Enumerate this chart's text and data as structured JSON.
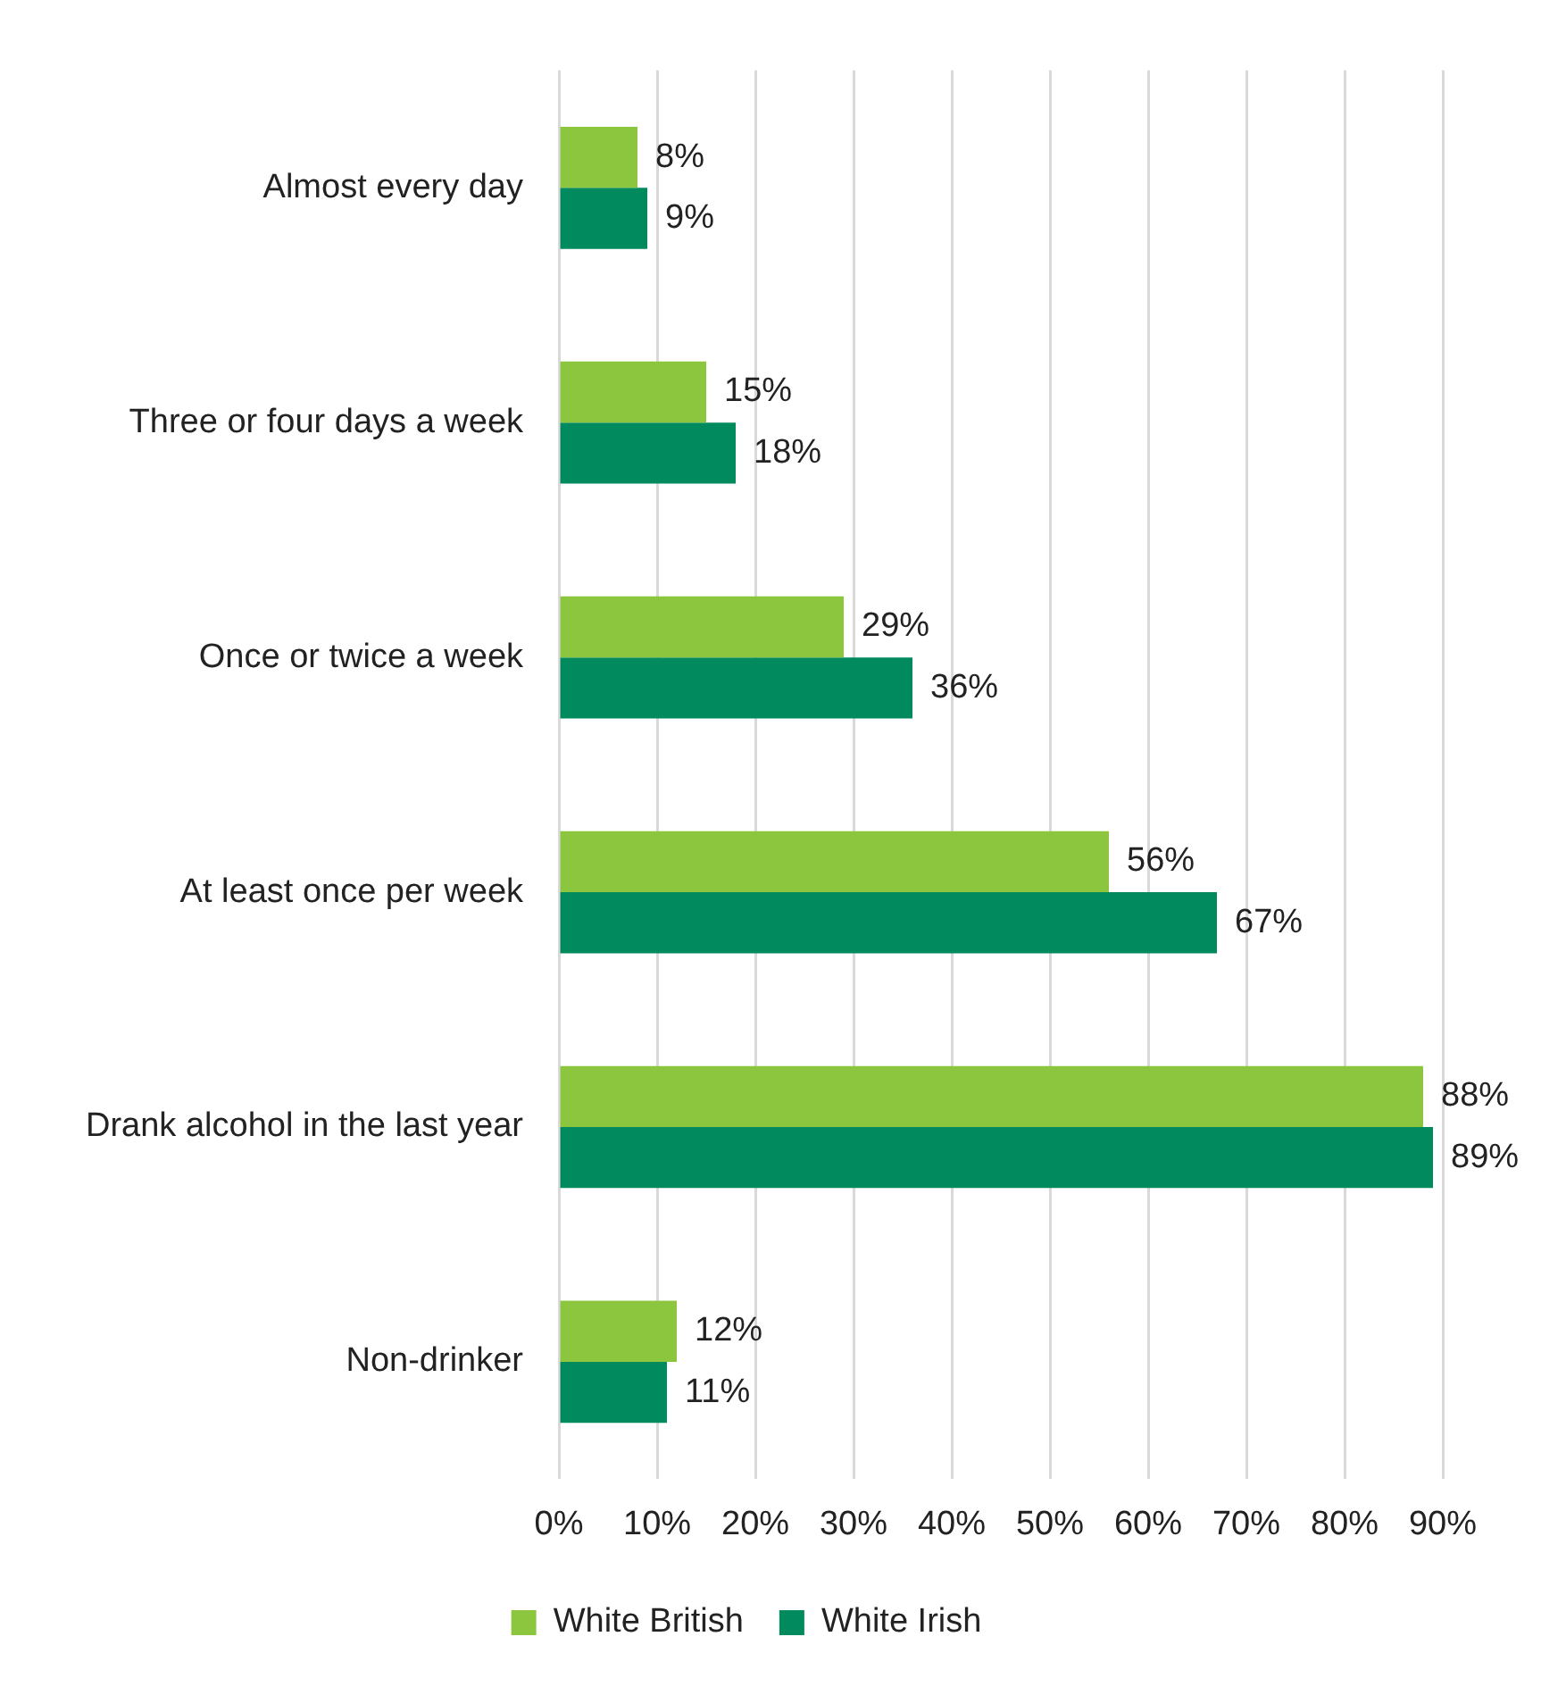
{
  "chart_data": {
    "type": "bar",
    "orientation": "horizontal",
    "categories": [
      "Almost every day",
      "Three or four days a week",
      "Once or twice a week",
      "At least once per week",
      "Drank alcohol in the last year",
      "Non-drinker"
    ],
    "series": [
      {
        "name": "White British",
        "color": "#8cc63f",
        "values": [
          8,
          15,
          29,
          56,
          88,
          12
        ],
        "value_labels": [
          "8%",
          "15%",
          "29%",
          "56%",
          "88%",
          "12%"
        ]
      },
      {
        "name": "White Irish",
        "color": "#008a5e",
        "values": [
          9,
          18,
          36,
          67,
          89,
          11
        ],
        "value_labels": [
          "9%",
          "18%",
          "36%",
          "67%",
          "89%",
          "11%"
        ]
      }
    ],
    "xlim": [
      0,
      90
    ],
    "xticks": [
      {
        "value": 0,
        "label": "0%"
      },
      {
        "value": 10,
        "label": "10%"
      },
      {
        "value": 20,
        "label": "20%"
      },
      {
        "value": 30,
        "label": "30%"
      },
      {
        "value": 40,
        "label": "40%"
      },
      {
        "value": 50,
        "label": "50%"
      },
      {
        "value": 60,
        "label": "60%"
      },
      {
        "value": 70,
        "label": "70%"
      },
      {
        "value": 80,
        "label": "80%"
      },
      {
        "value": 90,
        "label": "90%"
      }
    ],
    "grid": "x",
    "legend": "bottom"
  }
}
